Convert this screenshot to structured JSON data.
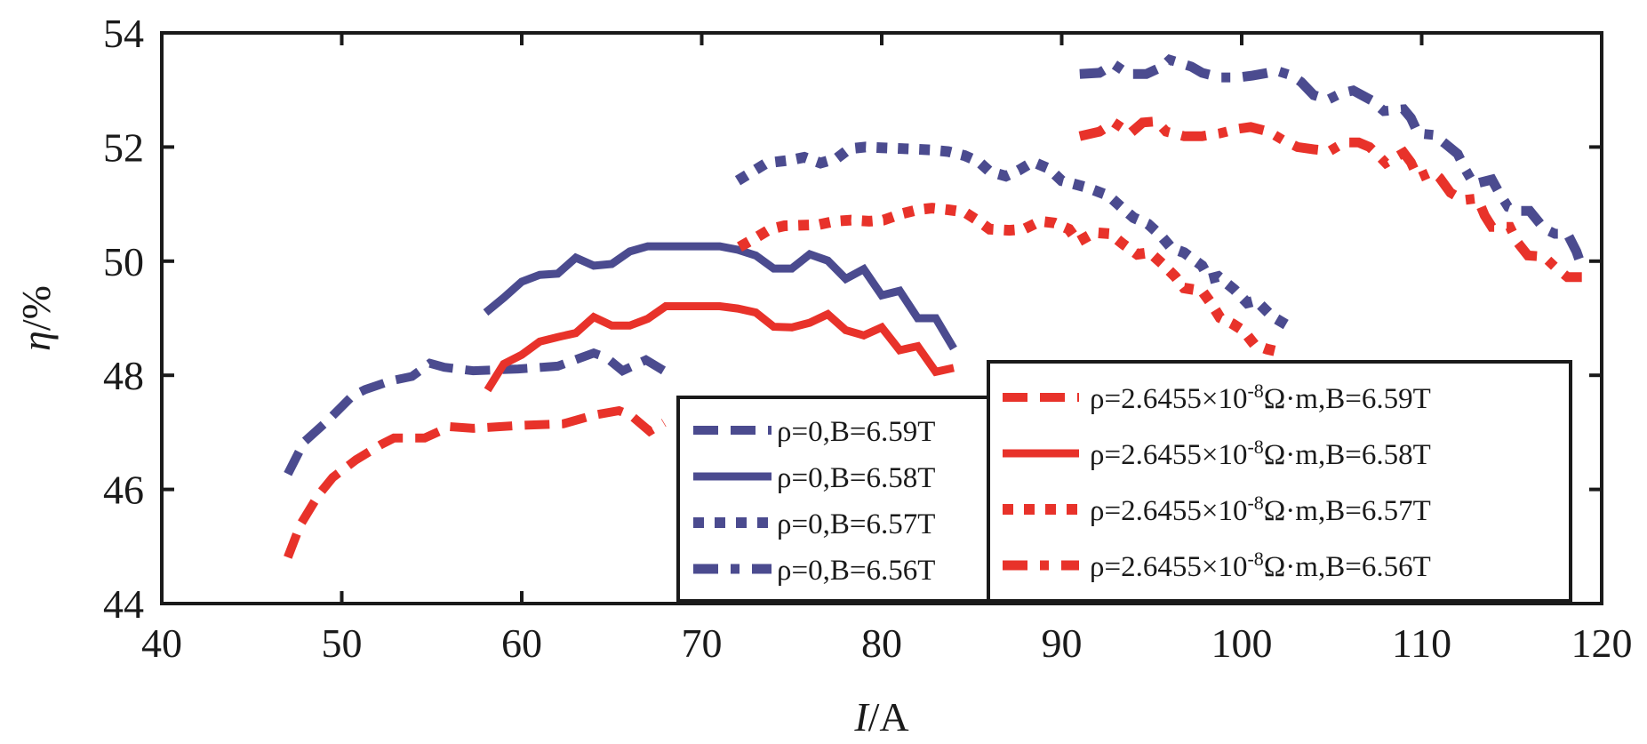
{
  "chart_data": {
    "type": "line",
    "title": "",
    "xlabel": "I/A",
    "xlabel_italic": "I",
    "xlabel_rest": "/A",
    "ylabel": "η/%",
    "ylabel_italic": "η",
    "ylabel_rest": "/%",
    "xlim": [
      40,
      120
    ],
    "ylim": [
      44,
      54
    ],
    "xticks": [
      40,
      50,
      60,
      70,
      80,
      90,
      100,
      110,
      120
    ],
    "yticks": [
      44,
      46,
      48,
      50,
      52,
      54
    ],
    "grid": false,
    "colors": {
      "rho0": "#4b4b8f",
      "rho_cu": "#e8322a"
    },
    "legends": [
      {
        "placement": "lower-center",
        "entries": [
          {
            "series": 0,
            "label": "ρ=0,B=6.59T"
          },
          {
            "series": 1,
            "label": "ρ=0,B=6.58T"
          },
          {
            "series": 2,
            "label": "ρ=0,B=6.57T"
          },
          {
            "series": 3,
            "label": "ρ=0,B=6.56T"
          }
        ]
      },
      {
        "placement": "lower-right",
        "entries": [
          {
            "series": 4,
            "label_main": "ρ=2.6455×10",
            "label_sup": "-8",
            "label_tail": "Ω·m,B=6.59T"
          },
          {
            "series": 5,
            "label_main": "ρ=2.6455×10",
            "label_sup": "-8",
            "label_tail": "Ω·m,B=6.58T"
          },
          {
            "series": 6,
            "label_main": "ρ=2.6455×10",
            "label_sup": "-8",
            "label_tail": "Ω·m,B=6.57T"
          },
          {
            "series": 7,
            "label_main": "ρ=2.6455×10",
            "label_sup": "-8",
            "label_tail": "Ω·m,B=6.56T"
          }
        ]
      }
    ],
    "series": [
      {
        "name": "ρ=0,B=6.59T",
        "color": "#4b4b8f",
        "style": "dashed",
        "x": [
          47.0,
          47.9,
          49.2,
          50.6,
          51.3,
          52.7,
          53.9,
          54.9,
          55.7,
          57.3,
          59.8,
          62.0,
          64.0,
          64.7,
          65.6,
          66.9,
          67.9
        ],
        "y": [
          46.27,
          46.83,
          47.2,
          47.64,
          47.75,
          47.9,
          47.98,
          48.21,
          48.14,
          48.08,
          48.11,
          48.16,
          48.39,
          48.31,
          48.08,
          48.27,
          48.08
        ]
      },
      {
        "name": "ρ=0,B=6.58T",
        "color": "#4b4b8f",
        "style": "solid",
        "x": [
          58.0,
          59.0,
          60.0,
          61.0,
          62.0,
          63.0,
          64.0,
          65.0,
          66.0,
          67.0,
          71.0,
          72.0,
          73.0,
          74.0,
          75.0,
          76.0,
          77.0,
          78.0,
          79.0,
          80.0,
          81.0,
          82.0,
          83.0,
          84.0
        ],
        "y": [
          49.1,
          49.36,
          49.64,
          49.76,
          49.78,
          50.06,
          49.92,
          49.95,
          50.17,
          50.26,
          50.26,
          50.2,
          50.1,
          49.87,
          49.87,
          50.12,
          50.01,
          49.69,
          49.86,
          49.4,
          49.48,
          49.0,
          49.0,
          48.47
        ]
      },
      {
        "name": "ρ=0,B=6.57T",
        "color": "#4b4b8f",
        "style": "dotted",
        "x": [
          72.0,
          73.6,
          74.9,
          75.7,
          76.6,
          77.5,
          78.2,
          79.1,
          82.7,
          83.7,
          84.6,
          85.4,
          86.0,
          86.9,
          87.6,
          88.4,
          89.3,
          90.0,
          91.3,
          92.0,
          92.6,
          93.4,
          94.0,
          94.8,
          95.5,
          96.1,
          96.8,
          97.8,
          98.2,
          98.7,
          99.6,
          100.3,
          100.8,
          101.7,
          102.9
        ],
        "y": [
          51.41,
          51.72,
          51.77,
          51.82,
          51.72,
          51.8,
          51.97,
          52.0,
          51.95,
          51.92,
          51.85,
          51.74,
          51.57,
          51.49,
          51.59,
          51.74,
          51.62,
          51.41,
          51.3,
          51.22,
          51.15,
          50.92,
          50.76,
          50.65,
          50.45,
          50.23,
          50.15,
          49.92,
          49.69,
          49.73,
          49.5,
          49.27,
          49.31,
          49.03,
          48.81
        ]
      },
      {
        "name": "ρ=0,B=6.56T",
        "color": "#4b4b8f",
        "style": "dashdot",
        "x": [
          91.0,
          92.1,
          92.9,
          93.7,
          94.7,
          95.6,
          96.0,
          97.2,
          97.8,
          98.8,
          99.8,
          100.6,
          102.0,
          102.8,
          103.3,
          104.0,
          104.8,
          105.5,
          106.2,
          107.2,
          107.9,
          109.0,
          109.4,
          109.8,
          110.7,
          111.3,
          112.0,
          112.4,
          112.9,
          113.9,
          114.3,
          114.8,
          115.4,
          116.0,
          116.8,
          117.4,
          118.1,
          118.6,
          118.9
        ],
        "y": [
          53.28,
          53.3,
          53.45,
          53.28,
          53.28,
          53.41,
          53.53,
          53.41,
          53.3,
          53.22,
          53.22,
          53.25,
          53.33,
          53.25,
          53.14,
          52.91,
          52.83,
          52.94,
          52.99,
          52.82,
          52.63,
          52.66,
          52.51,
          52.24,
          52.21,
          52.06,
          51.88,
          51.62,
          51.35,
          51.43,
          51.2,
          50.95,
          50.88,
          50.88,
          50.57,
          50.48,
          50.48,
          50.17,
          49.9
        ]
      },
      {
        "name": "ρ=2.6455×10-8Ω·m,B=6.59T",
        "color": "#e8322a",
        "style": "dashed",
        "x": [
          47.0,
          47.7,
          48.7,
          49.5,
          50.8,
          52.2,
          52.9,
          54.6,
          56.0,
          57.3,
          59.8,
          62.3,
          64.0,
          65.4,
          66.1,
          67.1,
          67.9
        ],
        "y": [
          44.81,
          45.38,
          45.9,
          46.21,
          46.52,
          46.79,
          46.9,
          46.9,
          47.1,
          47.07,
          47.12,
          47.15,
          47.3,
          47.38,
          47.29,
          47.02,
          47.17
        ]
      },
      {
        "name": "ρ=2.6455×10-8Ω·m,B=6.58T",
        "color": "#e8322a",
        "style": "solid",
        "x": [
          58.1,
          59.0,
          60.0,
          61.0,
          62.0,
          63.0,
          64.0,
          65.0,
          66.0,
          67.0,
          68.0,
          71.0,
          72.0,
          73.0,
          74.0,
          75.0,
          76.0,
          77.0,
          78.0,
          79.0,
          80.0,
          81.0,
          82.0,
          83.0,
          84.0
        ],
        "y": [
          47.74,
          48.2,
          48.36,
          48.59,
          48.67,
          48.74,
          49.02,
          48.87,
          48.87,
          48.99,
          49.21,
          49.21,
          49.17,
          49.1,
          48.85,
          48.84,
          48.92,
          49.07,
          48.79,
          48.7,
          48.84,
          48.44,
          48.51,
          48.06,
          48.13
        ]
      },
      {
        "name": "ρ=2.6455×10-8Ω·m,B=6.57T",
        "color": "#e8322a",
        "style": "dotted",
        "x": [
          72.1,
          73.0,
          73.8,
          74.6,
          76.5,
          77.4,
          78.3,
          79.3,
          80.1,
          81.1,
          82.0,
          82.8,
          83.7,
          84.6,
          85.3,
          86.0,
          87.1,
          87.9,
          88.8,
          89.6,
          90.4,
          90.9,
          91.8,
          92.7,
          93.4,
          94.2,
          94.9,
          95.6,
          96.3,
          96.8,
          97.8,
          98.3,
          98.8,
          99.5,
          100.1,
          100.7,
          101.4,
          102.2
        ],
        "y": [
          50.25,
          50.41,
          50.56,
          50.62,
          50.64,
          50.7,
          50.72,
          50.7,
          50.72,
          50.83,
          50.9,
          50.93,
          50.9,
          50.86,
          50.72,
          50.56,
          50.54,
          50.56,
          50.7,
          50.67,
          50.56,
          50.34,
          50.5,
          50.48,
          50.3,
          50.12,
          50.15,
          49.95,
          49.73,
          49.53,
          49.48,
          49.26,
          49.01,
          48.9,
          48.78,
          48.54,
          48.46,
          48.4
        ]
      },
      {
        "name": "ρ=2.6455×10-8Ω·m,B=6.56T",
        "color": "#e8322a",
        "style": "dashdot",
        "x": [
          91.0,
          92.1,
          92.9,
          93.8,
          94.5,
          95.3,
          95.8,
          96.8,
          97.8,
          98.8,
          99.8,
          100.5,
          101.5,
          102.3,
          103.1,
          104.0,
          104.9,
          105.7,
          106.5,
          107.1,
          107.6,
          108.0,
          109.0,
          109.4,
          109.8,
          110.6,
          111.0,
          111.6,
          112.3,
          113.1,
          113.5,
          113.9,
          114.9,
          115.3,
          115.9,
          116.8,
          117.4,
          118.1,
          118.9
        ],
        "y": [
          52.19,
          52.27,
          52.43,
          52.24,
          52.43,
          52.45,
          52.27,
          52.19,
          52.19,
          52.24,
          52.32,
          52.35,
          52.27,
          52.12,
          52.0,
          51.96,
          51.93,
          52.08,
          52.08,
          52.0,
          51.85,
          51.72,
          51.9,
          51.73,
          51.46,
          51.57,
          51.46,
          51.2,
          51.07,
          51.1,
          50.8,
          50.6,
          50.6,
          50.34,
          50.1,
          50.08,
          49.9,
          49.72,
          49.72
        ]
      }
    ]
  }
}
